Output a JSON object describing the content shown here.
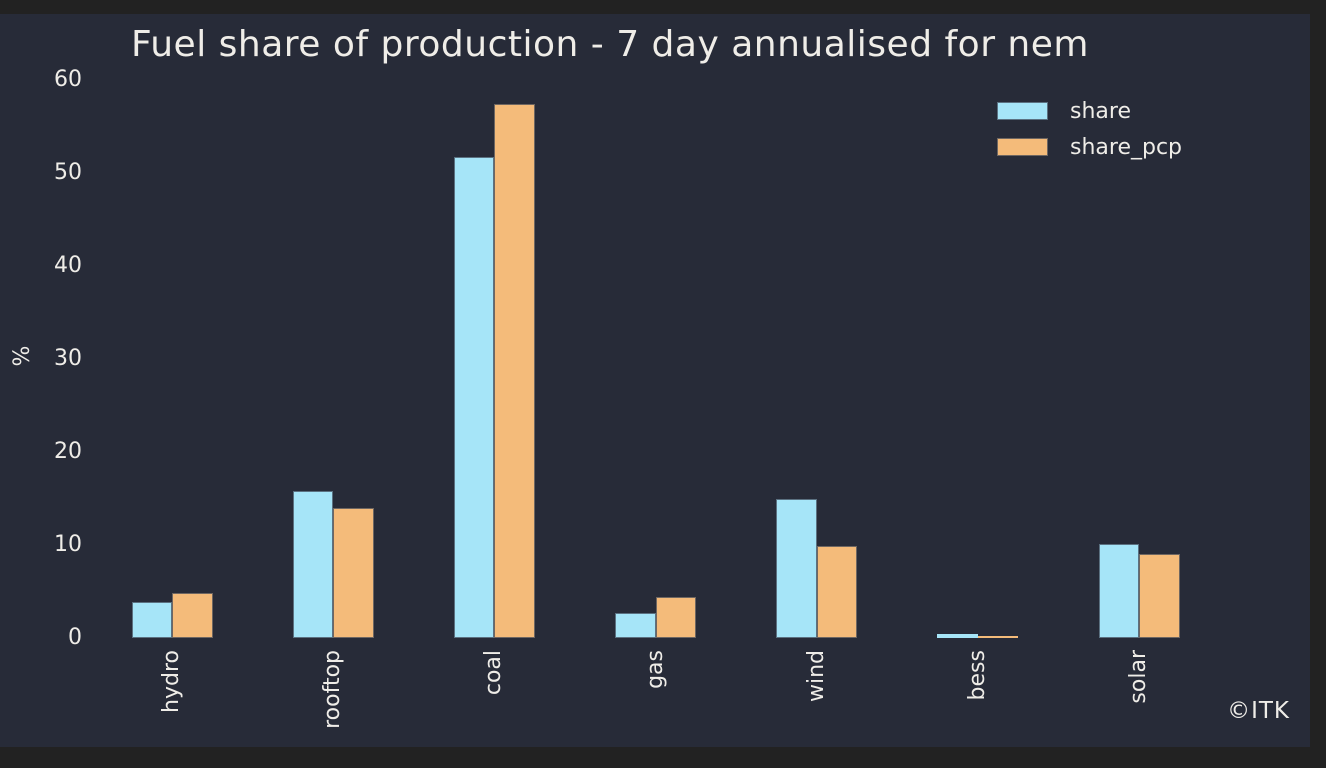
{
  "colors": {
    "outer_background": "#222222",
    "figure_background": "#272B38",
    "text": "#EFEDE8"
  },
  "watermark": "©ITK",
  "chart_data": {
    "type": "bar",
    "title": "Fuel share of production - 7 day annualised for nem",
    "xlabel": "",
    "ylabel": "%",
    "categories": [
      "hydro",
      "rooftop",
      "coal",
      "gas",
      "wind",
      "bess",
      "solar"
    ],
    "series": [
      {
        "name": "share",
        "color": "#A6E5F8",
        "values": [
          3.9,
          15.8,
          51.7,
          2.7,
          15.0,
          0.4,
          10.1
        ]
      },
      {
        "name": "share_pcp",
        "color": "#F4BB7A",
        "values": [
          4.8,
          14.0,
          57.4,
          4.4,
          9.9,
          0.2,
          9.0
        ]
      }
    ],
    "ylim": [
      0,
      60
    ],
    "yticks": [
      0,
      10,
      20,
      30,
      40,
      50,
      60
    ],
    "grid": false,
    "legend_position": "upper-right"
  }
}
